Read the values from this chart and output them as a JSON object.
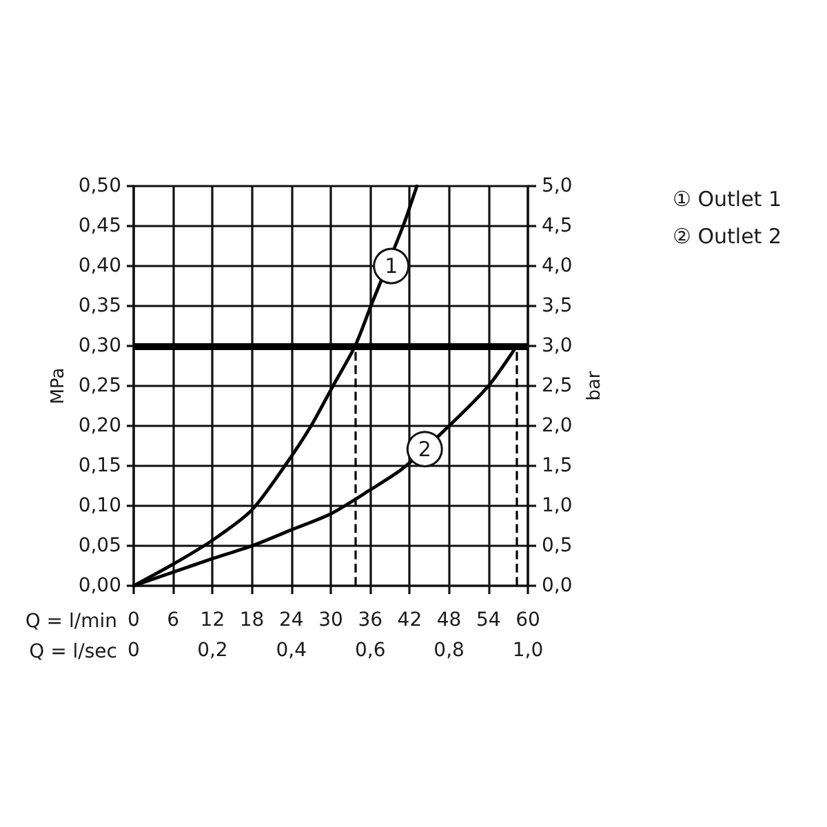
{
  "chart_data": {
    "type": "line",
    "xlabel": "Q = l/min",
    "x2label": "Q = l/sec",
    "ylabel": "MPa",
    "y2label": "bar",
    "xlim": [
      0,
      60
    ],
    "xticks": [
      0,
      6,
      12,
      18,
      24,
      30,
      36,
      42,
      48,
      54,
      60
    ],
    "x2lim": [
      0,
      1
    ],
    "x2ticks": [
      0,
      {
        "value": 0.2,
        "label": "0,2"
      },
      {
        "value": 0.4,
        "label": "0,4"
      },
      {
        "value": 0.6,
        "label": "0,6"
      },
      {
        "value": 0.8,
        "label": "0,8"
      },
      {
        "value": 1,
        "label": "1,0"
      }
    ],
    "ylim": [
      0,
      0.5
    ],
    "yticks": [
      {
        "value": 0,
        "label": "0,00"
      },
      {
        "value": 0.05,
        "label": "0,05"
      },
      {
        "value": 0.1,
        "label": "0,10"
      },
      {
        "value": 0.15,
        "label": "0,15"
      },
      {
        "value": 0.2,
        "label": "0,20"
      },
      {
        "value": 0.25,
        "label": "0,25"
      },
      {
        "value": 0.3,
        "label": "0,30"
      },
      {
        "value": 0.35,
        "label": "0,35"
      },
      {
        "value": 0.4,
        "label": "0,40"
      },
      {
        "value": 0.45,
        "label": "0,45"
      },
      {
        "value": 0.5,
        "label": "0,50"
      }
    ],
    "y2lim": [
      0,
      5
    ],
    "y2ticks": [
      {
        "value": 0,
        "label": "0,0"
      },
      {
        "value": 0.5,
        "label": "0,5"
      },
      {
        "value": 1,
        "label": "1,0"
      },
      {
        "value": 1.5,
        "label": "1,5"
      },
      {
        "value": 2,
        "label": "2,0"
      },
      {
        "value": 2.5,
        "label": "2,5"
      },
      {
        "value": 3,
        "label": "3,0"
      },
      {
        "value": 3.5,
        "label": "3,5"
      },
      {
        "value": 4,
        "label": "4,0"
      },
      {
        "value": 4.5,
        "label": "4,5"
      },
      {
        "value": 5,
        "label": "5,0"
      }
    ],
    "series": [
      {
        "name": "① Outlet 1",
        "color": "#000000",
        "x": [
          0,
          6,
          12,
          18,
          23,
          27,
          30,
          33.7,
          36.1,
          41,
          43.1
        ],
        "values": [
          0,
          0.027,
          0.057,
          0.095,
          0.15,
          0.2,
          0.245,
          0.3,
          0.35,
          0.45,
          0.5
        ]
      },
      {
        "name": "② Outlet 2",
        "color": "#000000",
        "x": [
          0,
          6,
          12,
          18,
          24,
          30,
          36,
          41,
          48,
          54,
          58.3
        ],
        "values": [
          0,
          0.017,
          0.034,
          0.05,
          0.07,
          0.09,
          0.12,
          0.147,
          0.2,
          0.25,
          0.3
        ]
      }
    ],
    "ref_lines": [
      {
        "axis": "y",
        "value": 0.3,
        "color": "#000000"
      },
      {
        "axis": "x",
        "value": 33.7,
        "color": "#000000",
        "line_style": "dashed"
      },
      {
        "axis": "x",
        "value": 58.3,
        "color": "#000000",
        "line_style": "dashed"
      }
    ],
    "annotations": [
      {
        "text": "1",
        "x": 39.2,
        "y": 0.4
      },
      {
        "text": "2",
        "x": 44.3,
        "y": 0.171
      }
    ],
    "grid": true,
    "legend": "top right"
  }
}
